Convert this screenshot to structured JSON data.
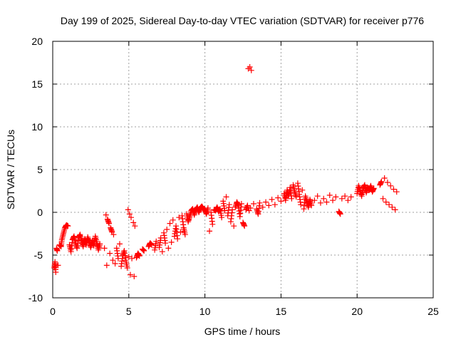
{
  "chart_data": {
    "type": "scatter",
    "title": "Day 199 of 2025, Sidereal Day-to-day VTEC variation (SDTVAR) for receiver p776",
    "xlabel": "GPS time / hours",
    "ylabel": "SDTVAR / TECUs",
    "xlim": [
      0,
      25
    ],
    "ylim": [
      -10,
      20
    ],
    "xticks": [
      0,
      5,
      10,
      15,
      20,
      25
    ],
    "yticks": [
      -10,
      -5,
      0,
      5,
      10,
      15,
      20
    ],
    "grid": true,
    "marker": "plus",
    "color": "#ff0000",
    "series": [
      {
        "name": "SDTVAR",
        "points": [
          [
            0.1,
            -6.5
          ],
          [
            0.15,
            -5.8
          ],
          [
            0.2,
            -7.0
          ],
          [
            0.25,
            -4.2
          ],
          [
            0.3,
            -4.5
          ],
          [
            0.35,
            -6.2
          ],
          [
            0.45,
            -3.8
          ],
          [
            0.55,
            -4.0
          ],
          [
            0.6,
            -3.2
          ],
          [
            0.7,
            -2.5
          ],
          [
            0.8,
            -1.8
          ],
          [
            0.9,
            -1.5
          ],
          [
            1.0,
            -1.6
          ],
          [
            1.1,
            -3.8
          ],
          [
            1.2,
            -4.6
          ],
          [
            1.3,
            -3.2
          ],
          [
            1.4,
            -2.8
          ],
          [
            1.5,
            -3.6
          ],
          [
            1.6,
            -4.2
          ],
          [
            1.7,
            -3.0
          ],
          [
            1.8,
            -2.6
          ],
          [
            1.9,
            -3.4
          ],
          [
            2.0,
            -4.0
          ],
          [
            2.1,
            -3.1
          ],
          [
            2.2,
            -3.8
          ],
          [
            2.3,
            -2.9
          ],
          [
            2.4,
            -3.5
          ],
          [
            2.5,
            -4.1
          ],
          [
            2.6,
            -3.3
          ],
          [
            2.7,
            -3.9
          ],
          [
            2.8,
            -2.8
          ],
          [
            2.9,
            -3.6
          ],
          [
            3.0,
            -4.4
          ],
          [
            3.1,
            -3.7
          ],
          [
            3.4,
            -4.2
          ],
          [
            3.5,
            -0.3
          ],
          [
            3.55,
            -6.2
          ],
          [
            3.6,
            -0.8
          ],
          [
            3.7,
            -1.3
          ],
          [
            3.75,
            -4.8
          ],
          [
            3.8,
            -1.8
          ],
          [
            3.9,
            -2.3
          ],
          [
            3.95,
            -5.6
          ],
          [
            4.0,
            -2.6
          ],
          [
            4.1,
            -6.0
          ],
          [
            4.2,
            -4.2
          ],
          [
            4.3,
            -5.4
          ],
          [
            4.4,
            -3.7
          ],
          [
            4.5,
            -6.3
          ],
          [
            4.6,
            -5.1
          ],
          [
            4.7,
            -4.5
          ],
          [
            4.8,
            -5.6
          ],
          [
            4.9,
            -6.5
          ],
          [
            4.95,
            0.3
          ],
          [
            5.0,
            -5.2
          ],
          [
            5.05,
            -0.2
          ],
          [
            5.1,
            -7.3
          ],
          [
            5.15,
            -0.6
          ],
          [
            5.2,
            -5.4
          ],
          [
            5.3,
            -1.2
          ],
          [
            5.35,
            -7.5
          ],
          [
            5.4,
            -1.6
          ],
          [
            5.5,
            -5.3
          ],
          [
            5.6,
            -4.8
          ],
          [
            5.7,
            -5.1
          ],
          [
            5.9,
            -4.3
          ],
          [
            6.0,
            -4.5
          ],
          [
            6.3,
            -4.0
          ],
          [
            6.4,
            -3.6
          ],
          [
            6.5,
            -3.8
          ],
          [
            6.7,
            -4.4
          ],
          [
            6.8,
            -3.4
          ],
          [
            7.0,
            -4.1
          ],
          [
            7.1,
            -3.0
          ],
          [
            7.2,
            -4.6
          ],
          [
            7.3,
            -2.4
          ],
          [
            7.4,
            -3.6
          ],
          [
            7.5,
            -2.0
          ],
          [
            7.6,
            -4.2
          ],
          [
            7.7,
            -1.3
          ],
          [
            7.8,
            -3.5
          ],
          [
            7.9,
            -0.9
          ],
          [
            8.0,
            -2.8
          ],
          [
            8.1,
            -1.6
          ],
          [
            8.2,
            -3.1
          ],
          [
            8.3,
            -0.6
          ],
          [
            8.4,
            -2.3
          ],
          [
            8.5,
            -0.4
          ],
          [
            8.6,
            -1.8
          ],
          [
            8.7,
            -2.6
          ],
          [
            8.8,
            -0.2
          ],
          [
            8.9,
            -1.1
          ],
          [
            9.0,
            -0.5
          ],
          [
            9.1,
            0.2
          ],
          [
            9.2,
            0.4
          ],
          [
            9.3,
            -0.3
          ],
          [
            9.4,
            0.3
          ],
          [
            9.5,
            0.6
          ],
          [
            9.6,
            0.0
          ],
          [
            9.7,
            0.5
          ],
          [
            9.8,
            0.7
          ],
          [
            9.9,
            0.4
          ],
          [
            10.0,
            0.3
          ],
          [
            10.1,
            -0.2
          ],
          [
            10.2,
            0.5
          ],
          [
            10.3,
            -2.2
          ],
          [
            10.4,
            0.0
          ],
          [
            10.5,
            -1.4
          ],
          [
            10.6,
            0.3
          ],
          [
            10.7,
            0.2
          ],
          [
            10.8,
            0.6
          ],
          [
            10.9,
            0.1
          ],
          [
            11.0,
            0.4
          ],
          [
            11.1,
            -0.6
          ],
          [
            11.2,
            1.3
          ],
          [
            11.3,
            0.2
          ],
          [
            11.4,
            1.8
          ],
          [
            11.5,
            -0.4
          ],
          [
            11.6,
            0.9
          ],
          [
            11.7,
            -1.1
          ],
          [
            11.8,
            0.3
          ],
          [
            11.9,
            -1.6
          ],
          [
            12.0,
            0.6
          ],
          [
            12.1,
            1.2
          ],
          [
            12.2,
            0.8
          ],
          [
            12.3,
            -0.5
          ],
          [
            12.4,
            1.0
          ],
          [
            12.5,
            -1.2
          ],
          [
            12.6,
            -1.6
          ],
          [
            12.7,
            0.3
          ],
          [
            12.8,
            0.8
          ],
          [
            12.85,
            16.8
          ],
          [
            12.9,
            0.2
          ],
          [
            12.95,
            17.0
          ],
          [
            13.0,
            0.5
          ],
          [
            13.05,
            16.6
          ],
          [
            13.2,
            1.0
          ],
          [
            13.4,
            0.4
          ],
          [
            13.5,
            -0.2
          ],
          [
            13.6,
            1.1
          ],
          [
            13.8,
            0.6
          ],
          [
            14.0,
            1.2
          ],
          [
            14.2,
            0.8
          ],
          [
            14.4,
            1.5
          ],
          [
            14.6,
            0.9
          ],
          [
            14.8,
            1.7
          ],
          [
            15.0,
            1.3
          ],
          [
            15.2,
            2.2
          ],
          [
            15.3,
            1.4
          ],
          [
            15.4,
            2.6
          ],
          [
            15.5,
            1.9
          ],
          [
            15.6,
            2.9
          ],
          [
            15.7,
            1.6
          ],
          [
            15.8,
            3.2
          ],
          [
            15.9,
            2.4
          ],
          [
            16.0,
            1.8
          ],
          [
            16.1,
            3.4
          ],
          [
            16.2,
            2.1
          ],
          [
            16.3,
            0.9
          ],
          [
            16.4,
            2.6
          ],
          [
            16.5,
            0.4
          ],
          [
            16.6,
            1.9
          ],
          [
            16.7,
            1.2
          ],
          [
            16.8,
            0.6
          ],
          [
            16.9,
            1.5
          ],
          [
            17.0,
            0.8
          ],
          [
            17.2,
            1.4
          ],
          [
            17.4,
            1.9
          ],
          [
            17.6,
            1.1
          ],
          [
            17.8,
            1.6
          ],
          [
            18.0,
            1.2
          ],
          [
            18.2,
            2.0
          ],
          [
            18.4,
            1.4
          ],
          [
            18.6,
            1.8
          ],
          [
            18.8,
            0.1
          ],
          [
            18.9,
            -0.2
          ],
          [
            19.0,
            1.6
          ],
          [
            19.2,
            1.9
          ],
          [
            19.4,
            1.4
          ],
          [
            19.6,
            1.8
          ],
          [
            20.0,
            2.2
          ],
          [
            20.1,
            3.1
          ],
          [
            20.2,
            2.5
          ],
          [
            20.3,
            1.9
          ],
          [
            20.4,
            2.8
          ],
          [
            20.5,
            3.2
          ],
          [
            20.6,
            2.3
          ],
          [
            20.7,
            2.9
          ],
          [
            20.8,
            2.6
          ],
          [
            20.9,
            3.1
          ],
          [
            21.0,
            2.4
          ],
          [
            21.1,
            2.8
          ],
          [
            21.5,
            3.2
          ],
          [
            21.6,
            3.6
          ],
          [
            21.7,
            1.6
          ],
          [
            21.8,
            4.0
          ],
          [
            21.9,
            1.2
          ],
          [
            22.0,
            3.5
          ],
          [
            22.1,
            0.9
          ],
          [
            22.2,
            3.1
          ],
          [
            22.3,
            0.6
          ],
          [
            22.4,
            2.7
          ],
          [
            22.5,
            0.3
          ],
          [
            22.6,
            2.4
          ]
        ]
      }
    ]
  }
}
